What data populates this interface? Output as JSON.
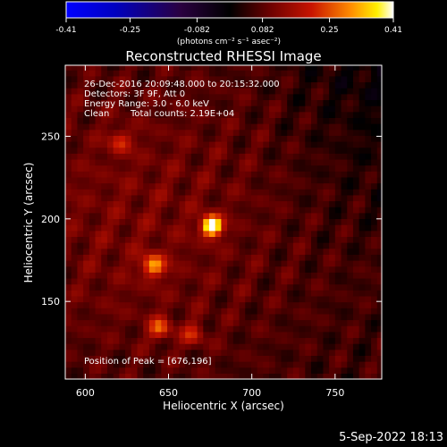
{
  "chart_data": {
    "type": "heatmap",
    "title": "Reconstructed RHESSI Image",
    "xlabel": "Heliocentric X (arcsec)",
    "ylabel": "Heliocentric Y (arcsec)",
    "xlim": [
      588,
      778
    ],
    "ylim": [
      103,
      293
    ],
    "xticks": [
      600,
      650,
      700,
      750
    ],
    "yticks": [
      150,
      200,
      250
    ],
    "colorbar": {
      "range": [
        -0.41,
        0.41
      ],
      "ticks": [
        "-0.41",
        "-0.25",
        "-0.082",
        "0.082",
        "0.25",
        "0.41"
      ],
      "unit": "(photons cm⁻² s⁻¹ asec⁻²)",
      "colormap": "blue-black-red-yellow-white"
    },
    "annotations": [
      "26-Dec-2016 20:09:48.000 to 20:15:32.000",
      "Detectors: 3F 9F, Att 0",
      "Energy Range: 3.0 - 6.0 keV",
      "Clean",
      "Total counts: 2.19E+04"
    ],
    "peak_label": "Position of Peak = [676,196]",
    "sources": [
      {
        "x": 676,
        "y": 196,
        "value": 0.41
      },
      {
        "x": 641,
        "y": 172,
        "value": 0.22
      },
      {
        "x": 645,
        "y": 134,
        "value": 0.17
      },
      {
        "x": 621,
        "y": 247,
        "value": 0.12
      },
      {
        "x": 665,
        "y": 130,
        "value": 0.12
      }
    ]
  },
  "footer": {
    "timestamp": "5-Sep-2022 18:13"
  }
}
